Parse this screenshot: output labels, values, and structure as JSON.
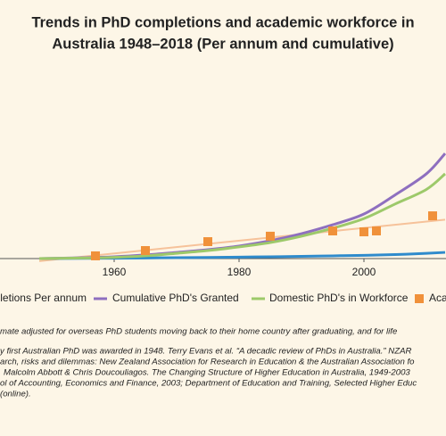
{
  "chart_data": {
    "type": "line",
    "title_lines": [
      "Trends in PhD completions and academic workforce in",
      "Australia 1948–2018 (Per annum and cumulative)"
    ],
    "x": [
      1948,
      1955,
      1960,
      1965,
      1970,
      1975,
      1980,
      1985,
      1990,
      1995,
      2000,
      2005,
      2010,
      2013
    ],
    "series": [
      {
        "name": "PhD Completions Per annum",
        "color": "#2f8bcc",
        "values": [
          0,
          0.1,
          0.2,
          0.3,
          0.5,
          0.6,
          0.8,
          1,
          1.2,
          1.5,
          1.8,
          2.2,
          2.9,
          3.4
        ]
      },
      {
        "name": "Cumulative PhD's Granted",
        "color": "#8e6fbf",
        "values": [
          0,
          0.5,
          1,
          2,
          3.4,
          4.9,
          6.9,
          9.8,
          13.7,
          18.6,
          24.5,
          35,
          46.6,
          57.8
        ]
      },
      {
        "name": "Domestic PhD's in Workforce",
        "color": "#9dc96a",
        "values": [
          0,
          0.3,
          0.7,
          1.5,
          2.9,
          4.4,
          6.4,
          8.8,
          12.3,
          16.7,
          22,
          30,
          38,
          46.6
        ]
      }
    ],
    "scatter_series": {
      "name": "Academic Workforce",
      "color": "#f0913a",
      "trend_color": "#f6c29a",
      "x": [
        1957,
        1965,
        1975,
        1985,
        1995,
        2000,
        2002,
        2011
      ],
      "values": [
        1.5,
        4.4,
        9.3,
        12.3,
        15.2,
        14.7,
        15.2,
        23.5
      ]
    },
    "xlim": [
      1942,
      2013
    ],
    "xticks": [
      1960,
      1980,
      2000
    ],
    "ylim": [
      0,
      100
    ],
    "notes": [
      "mate adjusted for overseas PhD students moving back to their home country after graduating, and for life",
      "y first Australian PhD was awarded in 1948. Terry Evans et al. “A decadic review of PhDs in Australia.” NZAR",
      "arch, risks and dilemmas: New Zealand Association for Research in Education & the Australian Association fo",
      "Malcolm Abbott & Chris Doucouliagos. The Changing Structure of Higher Education in Australia, 1949-2003",
      "ol of Accounting, Economics and Finance, 2003; Department of Education and Training, Selected Higher Educ",
      "(online)."
    ]
  }
}
